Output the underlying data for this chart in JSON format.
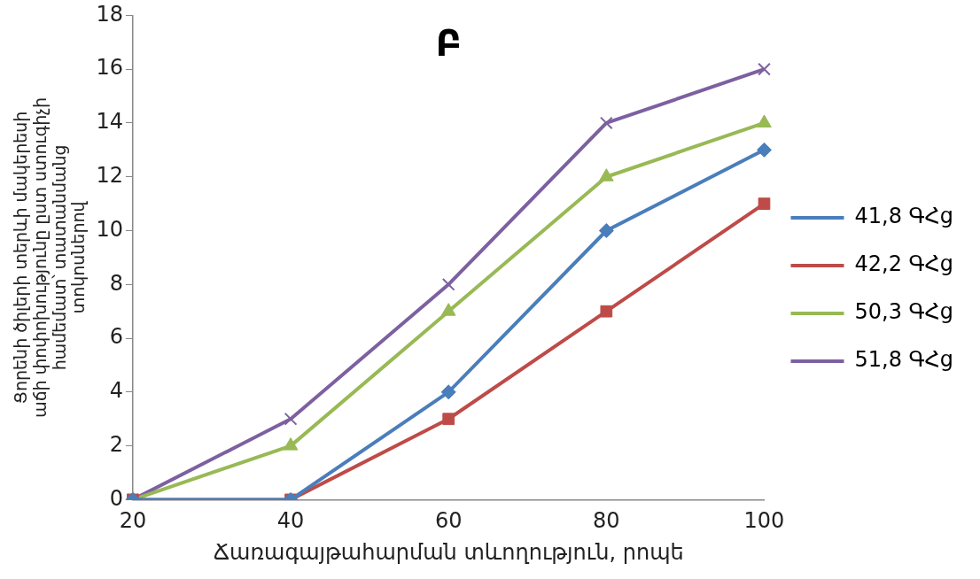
{
  "chart_data": {
    "type": "line",
    "title": "Բ",
    "xlabel": "Ճառագայթահարման տևողություն, րոպե",
    "ylabel": "Ցորենի ծիլերի տերևի մակերեսի\nաճի փոփոխությունը ըստ ստուգիչի\nհամեմատ՝ տատանմանց\nտոկոսներով",
    "categories": [
      "20",
      "40",
      "60",
      "80",
      "100"
    ],
    "series": [
      {
        "name": "41,8 ԳՀց",
        "color": "#4a7ebb",
        "marker": "diamond",
        "values": [
          0,
          0,
          4,
          10,
          13
        ]
      },
      {
        "name": "42,2 ԳՀց",
        "color": "#be4b48",
        "marker": "square",
        "values": [
          0,
          0,
          3,
          7,
          11
        ]
      },
      {
        "name": "50,3 ԳՀց",
        "color": "#98b954",
        "marker": "triangle",
        "values": [
          0,
          2,
          7,
          12,
          14
        ]
      },
      {
        "name": "51,8 ԳՀց",
        "color": "#7d60a0",
        "marker": "cross",
        "values": [
          0,
          3,
          8,
          14,
          16
        ]
      }
    ],
    "ylim": [
      0,
      18
    ],
    "yticks": [
      0,
      2,
      4,
      6,
      8,
      10,
      12,
      14,
      16,
      18
    ],
    "grid": false,
    "legend": "right",
    "line_style": "solid"
  }
}
